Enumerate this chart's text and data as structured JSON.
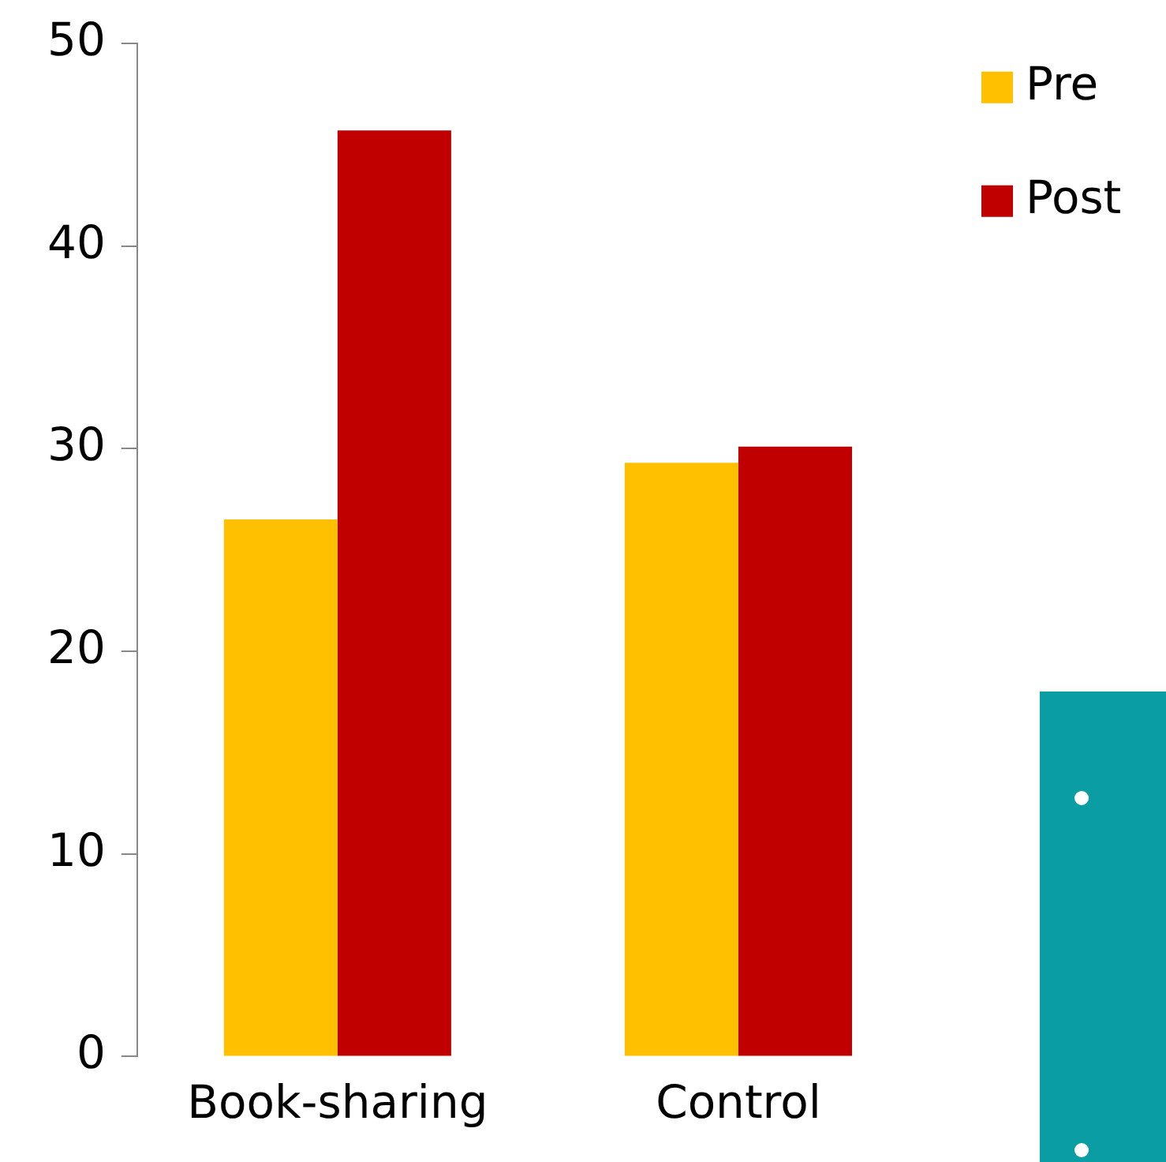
{
  "chart_data": {
    "type": "bar",
    "categories": [
      "Book-sharing",
      "Control"
    ],
    "series": [
      {
        "name": "Pre",
        "color": "#ffc000",
        "values": [
          26.5,
          29.3
        ]
      },
      {
        "name": "Post",
        "color": "#c00000",
        "values": [
          45.7,
          30.1
        ]
      }
    ],
    "ylim": [
      0,
      50
    ],
    "yticks": [
      0,
      10,
      20,
      30,
      40,
      50
    ],
    "grid": false,
    "legend": "top right"
  }
}
